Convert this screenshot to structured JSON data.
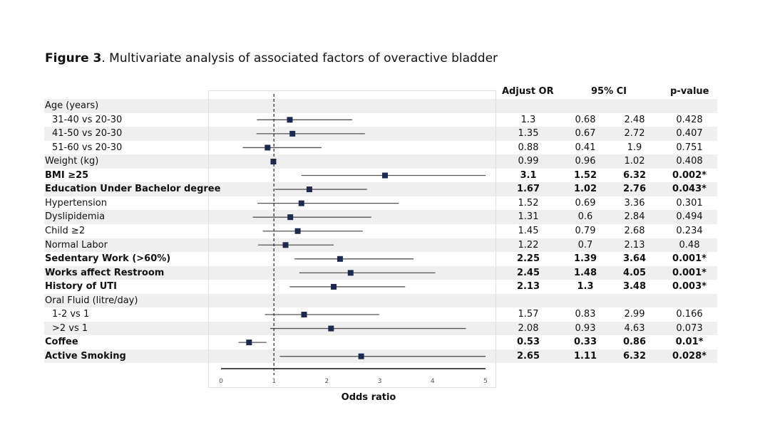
{
  "title": {
    "prefix": "Figure 3",
    "rest": ". Multivariate analysis of associated factors of overactive bladder"
  },
  "headers": {
    "or": "Adjust OR",
    "ci": "95% CI",
    "p": "p-value"
  },
  "chart_data": {
    "type": "forest",
    "xlabel": "Odds ratio",
    "xlim": [
      0,
      5
    ],
    "xticks": [
      "0",
      "1",
      "2",
      "3",
      "4",
      "5"
    ],
    "reference_line": 1,
    "rows": [
      {
        "label": "Age (years)",
        "bold": false,
        "indent": false,
        "or": null,
        "lo": null,
        "hi": null,
        "or_text": "",
        "lo_text": "",
        "hi_text": "",
        "p_text": ""
      },
      {
        "label": "31-40 vs 20-30",
        "bold": false,
        "indent": true,
        "or": 1.3,
        "lo": 0.68,
        "hi": 2.48,
        "or_text": "1.3",
        "lo_text": "0.68",
        "hi_text": "2.48",
        "p_text": "0.428"
      },
      {
        "label": "41-50 vs 20-30",
        "bold": false,
        "indent": true,
        "or": 1.35,
        "lo": 0.67,
        "hi": 2.72,
        "or_text": "1.35",
        "lo_text": "0.67",
        "hi_text": "2.72",
        "p_text": "0.407"
      },
      {
        "label": "51-60 vs 20-30",
        "bold": false,
        "indent": true,
        "or": 0.88,
        "lo": 0.41,
        "hi": 1.9,
        "or_text": "0.88",
        "lo_text": "0.41",
        "hi_text": "1.9",
        "p_text": "0.751"
      },
      {
        "label": "Weight (kg)",
        "bold": false,
        "indent": false,
        "or": 0.99,
        "lo": 0.96,
        "hi": 1.02,
        "or_text": "0.99",
        "lo_text": "0.96",
        "hi_text": "1.02",
        "p_text": "0.408"
      },
      {
        "label": "BMI ≥25",
        "bold": true,
        "indent": false,
        "or": 3.1,
        "lo": 1.52,
        "hi": 6.32,
        "or_text": "3.1",
        "lo_text": "1.52",
        "hi_text": "6.32",
        "p_text": "0.002*"
      },
      {
        "label": "Education Under Bachelor degree",
        "bold": true,
        "indent": false,
        "or": 1.67,
        "lo": 1.02,
        "hi": 2.76,
        "or_text": "1.67",
        "lo_text": "1.02",
        "hi_text": "2.76",
        "p_text": "0.043*"
      },
      {
        "label": "Hypertension",
        "bold": false,
        "indent": false,
        "or": 1.52,
        "lo": 0.69,
        "hi": 3.36,
        "or_text": "1.52",
        "lo_text": "0.69",
        "hi_text": "3.36",
        "p_text": "0.301"
      },
      {
        "label": "Dyslipidemia",
        "bold": false,
        "indent": false,
        "or": 1.31,
        "lo": 0.6,
        "hi": 2.84,
        "or_text": "1.31",
        "lo_text": "0.6",
        "hi_text": "2.84",
        "p_text": "0.494"
      },
      {
        "label": "Child ≥2",
        "bold": false,
        "indent": false,
        "or": 1.45,
        "lo": 0.79,
        "hi": 2.68,
        "or_text": "1.45",
        "lo_text": "0.79",
        "hi_text": "2.68",
        "p_text": "0.234"
      },
      {
        "label": "Normal Labor",
        "bold": false,
        "indent": false,
        "or": 1.22,
        "lo": 0.7,
        "hi": 2.13,
        "or_text": "1.22",
        "lo_text": "0.7",
        "hi_text": "2.13",
        "p_text": "0.48"
      },
      {
        "label": "Sedentary Work (>60%)",
        "bold": true,
        "indent": false,
        "or": 2.25,
        "lo": 1.39,
        "hi": 3.64,
        "or_text": "2.25",
        "lo_text": "1.39",
        "hi_text": "3.64",
        "p_text": "0.001*"
      },
      {
        "label": "Works affect Restroom",
        "bold": true,
        "indent": false,
        "or": 2.45,
        "lo": 1.48,
        "hi": 4.05,
        "or_text": "2.45",
        "lo_text": "1.48",
        "hi_text": "4.05",
        "p_text": "0.001*"
      },
      {
        "label": "History of UTI",
        "bold": true,
        "indent": false,
        "or": 2.13,
        "lo": 1.3,
        "hi": 3.48,
        "or_text": "2.13",
        "lo_text": "1.3",
        "hi_text": "3.48",
        "p_text": "0.003*"
      },
      {
        "label": "Oral Fluid (litre/day)",
        "bold": false,
        "indent": false,
        "or": null,
        "lo": null,
        "hi": null,
        "or_text": "",
        "lo_text": "",
        "hi_text": "",
        "p_text": ""
      },
      {
        "label": "1-2 vs 1",
        "bold": false,
        "indent": true,
        "or": 1.57,
        "lo": 0.83,
        "hi": 2.99,
        "or_text": "1.57",
        "lo_text": "0.83",
        "hi_text": "2.99",
        "p_text": "0.166"
      },
      {
        "label": ">2 vs 1",
        "bold": false,
        "indent": true,
        "or": 2.08,
        "lo": 0.93,
        "hi": 4.63,
        "or_text": "2.08",
        "lo_text": "0.93",
        "hi_text": "4.63",
        "p_text": "0.073"
      },
      {
        "label": "Coffee",
        "bold": true,
        "indent": false,
        "or": 0.53,
        "lo": 0.33,
        "hi": 0.86,
        "or_text": "0.53",
        "lo_text": "0.33",
        "hi_text": "0.86",
        "p_text": "0.01*"
      },
      {
        "label": "Active Smoking",
        "bold": true,
        "indent": false,
        "or": 2.65,
        "lo": 1.11,
        "hi": 6.32,
        "or_text": "2.65",
        "lo_text": "1.11",
        "hi_text": "6.32",
        "p_text": "0.028*"
      }
    ],
    "colors": {
      "marker": "#1b2a4e",
      "ci_line": "#555555",
      "stripe": "#efefef",
      "ref_line": "#222222"
    }
  }
}
